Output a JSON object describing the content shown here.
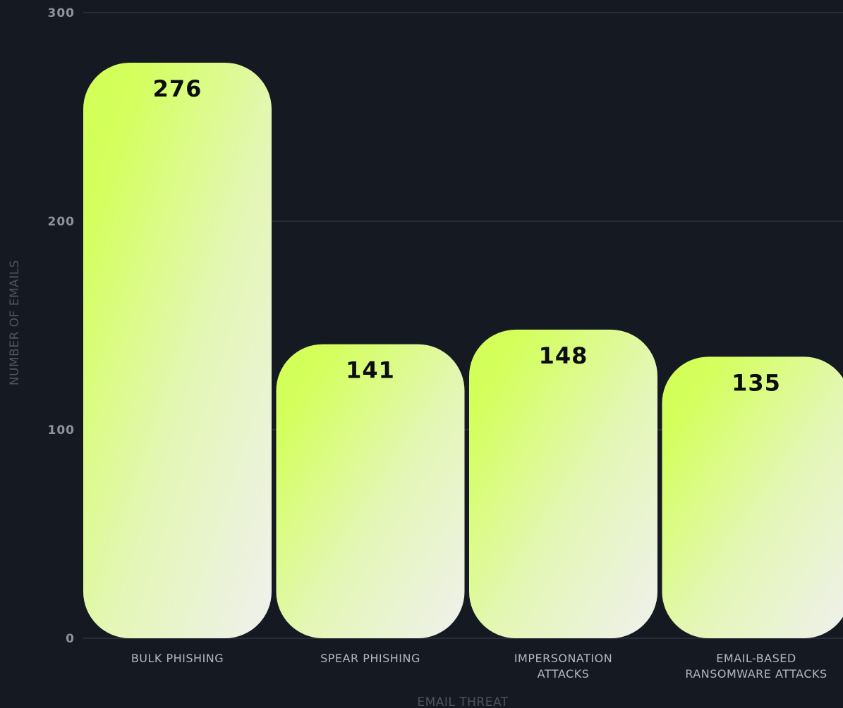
{
  "chart_data": {
    "type": "bar",
    "categories": [
      "BULK PHISHING",
      "SPEAR PHISHING",
      "IMPERSONATION ATTACKS",
      "EMAIL-BASED RANSOMWARE ATTACKS"
    ],
    "category_lines": [
      [
        "BULK PHISHING"
      ],
      [
        "SPEAR PHISHING"
      ],
      [
        "IMPERSONATION",
        "ATTACKS"
      ],
      [
        "EMAIL-BASED",
        "RANSOMWARE ATTACKS"
      ]
    ],
    "values": [
      276,
      141,
      148,
      135
    ],
    "title": "",
    "xlabel": "EMAIL THREAT",
    "ylabel": "NUMBER OF EMAILS",
    "ylim": [
      0,
      300
    ],
    "yticks": [
      0,
      100,
      200,
      300
    ],
    "grid": true,
    "legend": "none",
    "colors": {
      "background": "#151922",
      "bar_top": "#d4ff5c",
      "bar_bottom": "#eef0ec",
      "grid": "#3a3f4a",
      "value_label": "#0b0d10",
      "tick_label": "#8f949c",
      "category_label": "#b3b8bf",
      "axis_label": "#4e535c"
    }
  }
}
